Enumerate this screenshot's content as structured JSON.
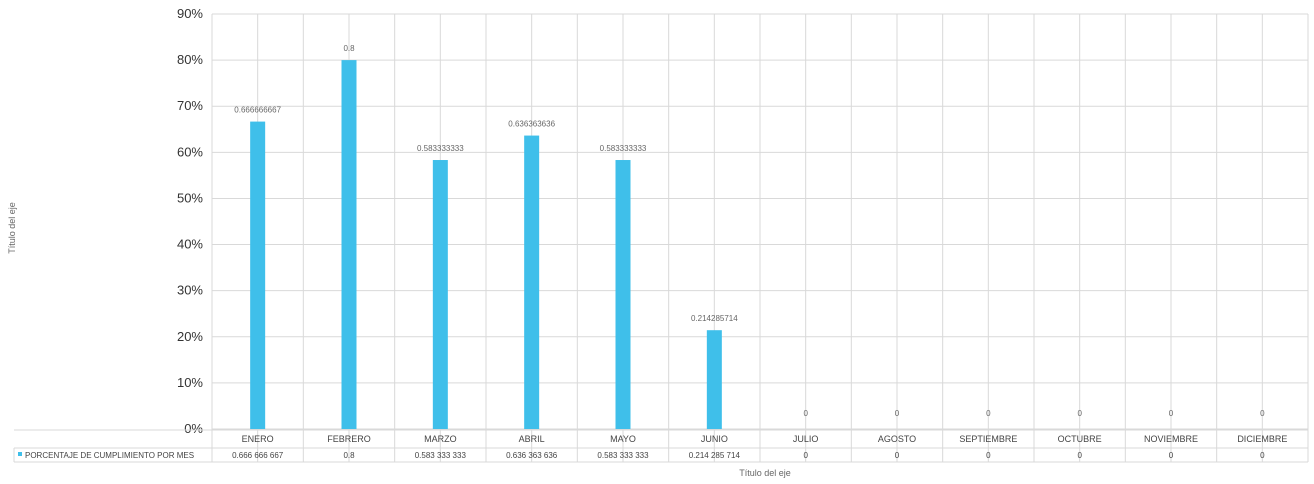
{
  "chart_data": {
    "type": "bar",
    "categories": [
      "ENERO",
      "FEBRERO",
      "MARZO",
      "ABRIL",
      "MAYO",
      "JUNIO",
      "JULIO",
      "AGOSTO",
      "SEPTIEMBRE",
      "OCTUBRE",
      "NOVIEMBRE",
      "DICIEMBRE"
    ],
    "series": [
      {
        "name": "PORCENTAJE DE CUMPLIMIENTO POR MES",
        "values": [
          0.666666667,
          0.8,
          0.583333333,
          0.636363636,
          0.583333333,
          0.214285714,
          0,
          0,
          0,
          0,
          0,
          0
        ],
        "data_labels": [
          "0.666666667",
          "0.8",
          "0.583333333",
          "0.636363636",
          "0.583333333",
          "0.214285714",
          "0",
          "0",
          "0",
          "0",
          "0",
          "0"
        ],
        "table_values": [
          "0.666 666 667",
          "0.8",
          "0.583 333 333",
          "0.636 363 636",
          "0.583 333 333",
          "0.214 285 714",
          "0",
          "0",
          "0",
          "0",
          "0",
          "0"
        ],
        "color": "#3fbfea"
      }
    ],
    "ylim": [
      0,
      0.9
    ],
    "yticks": [
      "0%",
      "10%",
      "20%",
      "30%",
      "40%",
      "50%",
      "60%",
      "70%",
      "80%",
      "90%"
    ],
    "xlabel": "Título del eje",
    "ylabel": "Título del eje",
    "grid": true,
    "legend": "data-table-below"
  }
}
